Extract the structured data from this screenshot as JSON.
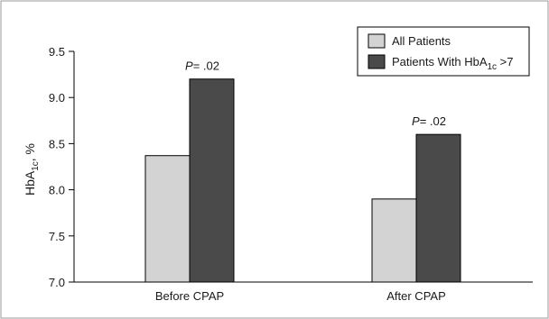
{
  "chart_data": {
    "type": "bar",
    "categories": [
      "Before CPAP",
      "After CPAP"
    ],
    "series": [
      {
        "name": "All Patients",
        "values": [
          8.37,
          7.9
        ],
        "color": "#d3d3d3"
      },
      {
        "name": "Patients With HbA1c >7",
        "values": [
          9.2,
          8.6
        ],
        "color": "#4a4a4a"
      }
    ],
    "ylabel": "HbA1c, %",
    "ylim": [
      7.0,
      9.5
    ],
    "yticks": [
      "7.0",
      "7.5",
      "8.0",
      "8.5",
      "9.0",
      "9.5"
    ],
    "annotations": [
      "P = .02",
      "P = .02"
    ],
    "legend_position": "top-right",
    "grid": false
  }
}
